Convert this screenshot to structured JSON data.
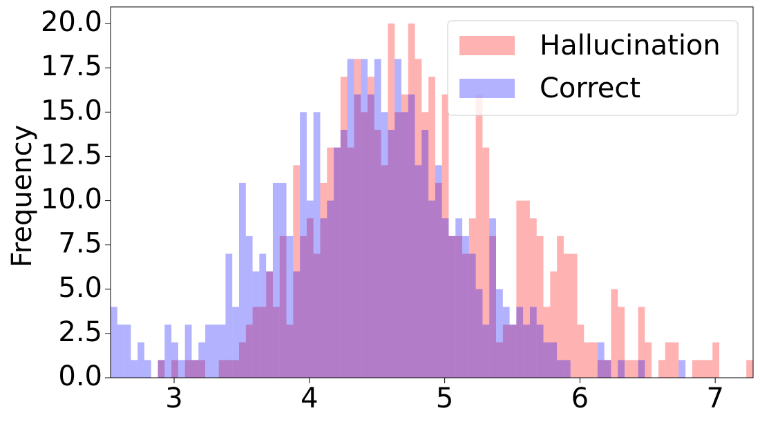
{
  "chart_data": {
    "type": "histogram",
    "ylabel": "Frequency",
    "bins": [
      2.53,
      2.58,
      2.63,
      2.68,
      2.73,
      2.78,
      2.83,
      2.88,
      2.93,
      2.98,
      3.03,
      3.08,
      3.13,
      3.18,
      3.23,
      3.28,
      3.33,
      3.38,
      3.43,
      3.48,
      3.53,
      3.58,
      3.63,
      3.68,
      3.73,
      3.78,
      3.83,
      3.88,
      3.93,
      3.98,
      4.03,
      4.08,
      4.13,
      4.18,
      4.23,
      4.28,
      4.33,
      4.38,
      4.43,
      4.48,
      4.53,
      4.58,
      4.63,
      4.68,
      4.73,
      4.78,
      4.83,
      4.88,
      4.93,
      4.98,
      5.03,
      5.08,
      5.13,
      5.18,
      5.23,
      5.28,
      5.33,
      5.38,
      5.43,
      5.48,
      5.53,
      5.58,
      5.63,
      5.68,
      5.73,
      5.78,
      5.83,
      5.88,
      5.93,
      5.98,
      6.03,
      6.08,
      6.13,
      6.18,
      6.23,
      6.28,
      6.33,
      6.38,
      6.43,
      6.48,
      6.53,
      6.58,
      6.63,
      6.68,
      6.73,
      6.78,
      6.83,
      6.88,
      6.93,
      6.98,
      7.03,
      7.08,
      7.13,
      7.18,
      7.23,
      7.28
    ],
    "series": [
      {
        "name": "Hallucination",
        "color": "#ff0000",
        "opacity": 0.3,
        "values": [
          0,
          0,
          0,
          0,
          0,
          0,
          0,
          1,
          0,
          1,
          0,
          1,
          1,
          1,
          0,
          0,
          1,
          1,
          1,
          2,
          3,
          4,
          4,
          6,
          4,
          8,
          3,
          12,
          8,
          9,
          7,
          11,
          13,
          13,
          17,
          13,
          18,
          15,
          17,
          14,
          12,
          20,
          15,
          16,
          20,
          18,
          15,
          17,
          11,
          16,
          8,
          8,
          7,
          9,
          16,
          13,
          8,
          2,
          3,
          3,
          10,
          10,
          9,
          8,
          4,
          6,
          8,
          7,
          7,
          3,
          2,
          2,
          1,
          1,
          5,
          4,
          1,
          1,
          4,
          2,
          0,
          1,
          2,
          2,
          0,
          0,
          1,
          1,
          1,
          2,
          0,
          0,
          0,
          0,
          1
        ]
      },
      {
        "name": "Correct",
        "color": "#0000ff",
        "opacity": 0.3,
        "values": [
          4,
          3,
          3,
          1,
          2,
          1,
          0,
          1,
          3,
          2,
          1,
          3,
          1,
          2,
          3,
          3,
          3,
          7,
          4,
          11,
          8,
          6,
          7,
          6,
          11,
          11,
          8,
          6,
          15,
          10,
          15,
          9,
          10,
          13,
          14,
          18,
          16,
          18,
          16,
          18,
          15,
          14,
          18,
          15,
          16,
          12,
          14,
          10,
          12,
          9,
          8,
          9,
          8,
          7,
          5,
          3,
          9,
          5,
          4,
          3,
          4,
          3,
          4,
          3,
          2,
          2,
          1,
          1,
          0,
          0,
          0,
          0,
          2,
          1,
          0,
          1,
          0,
          0,
          1,
          0,
          0,
          0,
          0,
          0,
          1,
          0,
          0,
          0,
          0,
          0,
          0,
          0,
          0,
          0,
          0
        ]
      }
    ],
    "xlim": [
      2.53,
      7.28
    ],
    "ylim": [
      0,
      20.94
    ],
    "xticks": [
      3,
      4,
      5,
      6,
      7
    ],
    "yticks": [
      {
        "value": 0,
        "label": "0.0"
      },
      2.5,
      {
        "value": 5,
        "label": "5.0"
      },
      7.5,
      {
        "value": 10,
        "label": "10.0"
      },
      12.5,
      {
        "value": 15,
        "label": "15.0"
      },
      17.5,
      {
        "value": 20,
        "label": "20.0"
      }
    ],
    "legend": "upper right",
    "grid": false
  }
}
